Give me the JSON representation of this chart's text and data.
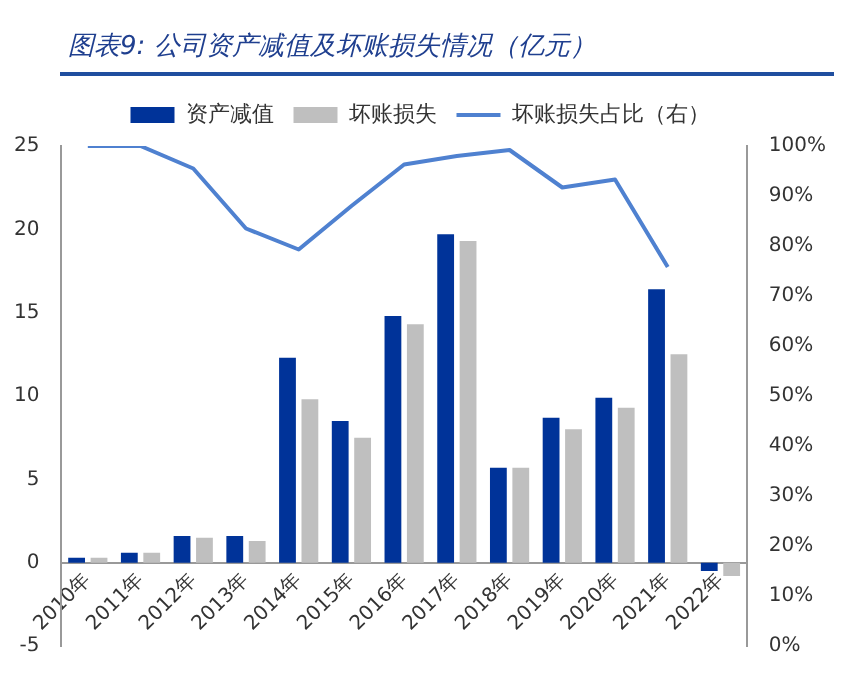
{
  "chart_data": {
    "type": "bar",
    "title": "图表9: 公司资产减值及坏账损失情况（亿元）",
    "categories": [
      "2010年",
      "2011年",
      "2012年",
      "2013年",
      "2014年",
      "2015年",
      "2016年",
      "2017年",
      "2018年",
      "2019年",
      "2020年",
      "2021年",
      "2022年"
    ],
    "series": [
      {
        "name": "资产减值",
        "color": "#003399",
        "values": [
          0.3,
          0.6,
          1.6,
          1.6,
          12.3,
          8.5,
          14.8,
          19.7,
          5.7,
          8.7,
          9.9,
          16.4,
          -0.5
        ]
      },
      {
        "name": "坏账损失",
        "color": "#bfbfbf",
        "values": [
          0.3,
          0.6,
          1.5,
          1.3,
          9.8,
          7.5,
          14.3,
          19.3,
          5.7,
          8.0,
          9.3,
          12.5,
          -0.8
        ]
      },
      {
        "name": "坏账损失占比（右）",
        "type": "line",
        "axis": "y2",
        "color": "#4f81d0",
        "values": [
          100,
          100,
          95.5,
          83.5,
          79.3,
          88,
          96.3,
          98,
          99.2,
          91.7,
          93.3,
          75.8,
          null
        ]
      }
    ],
    "ylim": [
      -5,
      25
    ],
    "yticks": [
      -5,
      0,
      5,
      10,
      15,
      20,
      25
    ],
    "y2lim": [
      0,
      100
    ],
    "y2ticks": [
      {
        "value": 0,
        "label": "0%"
      },
      {
        "value": 10,
        "label": "10%"
      },
      {
        "value": 20,
        "label": "20%"
      },
      {
        "value": 30,
        "label": "30%"
      },
      {
        "value": 40,
        "label": "40%"
      },
      {
        "value": 50,
        "label": "50%"
      },
      {
        "value": 60,
        "label": "60%"
      },
      {
        "value": 70,
        "label": "70%"
      },
      {
        "value": 80,
        "label": "80%"
      },
      {
        "value": 90,
        "label": "90%"
      },
      {
        "value": 100,
        "label": "100%"
      }
    ],
    "grid": false,
    "legend": "top",
    "marker": "none",
    "line_style": "solid"
  }
}
